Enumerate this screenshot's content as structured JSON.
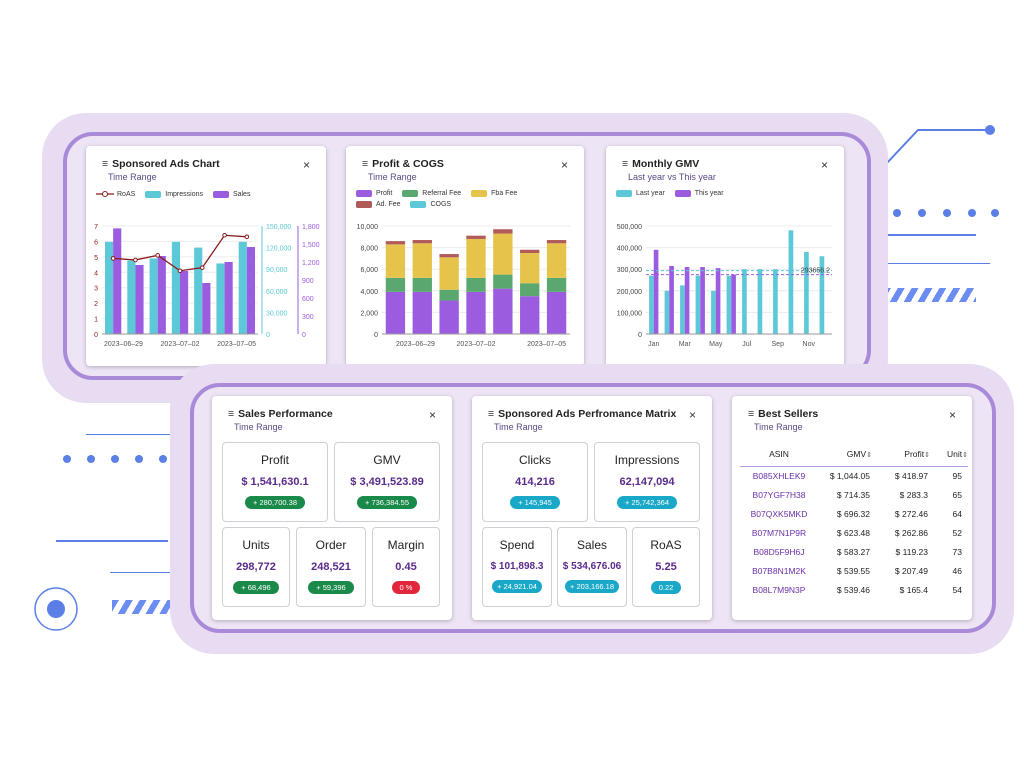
{
  "colors": {
    "teal": "#5cc8d8",
    "purple": "#9b5ce0",
    "roas_line": "#8b1a1a",
    "profit_bar": "#9b5ce0",
    "referral_bar": "#5aa870",
    "fba_bar": "#e6c34a",
    "ad_bar": "#b05a5a",
    "cogs_bar": "#5cc8d8",
    "badge_green": "#1a8a4a",
    "badge_red": "#e0283a",
    "badge_teal": "#1aa8c8"
  },
  "sponsored_ads_chart": {
    "title": "Sponsored Ads Chart",
    "subtitle": "Time Range",
    "close": "×",
    "legend": [
      "RoAS",
      "Impressions",
      "Sales"
    ],
    "left_ticks": [
      "7",
      "6",
      "5",
      "4",
      "3",
      "2",
      "1",
      "0"
    ],
    "mid_ticks": [
      "150,000",
      "120,000",
      "90,000",
      "60,000",
      "30,000",
      "0"
    ],
    "right_ticks": [
      "1,800",
      "1,500",
      "1,200",
      "900",
      "600",
      "300",
      "0"
    ],
    "x_labels": [
      "2023–06–29",
      "2023–07–02",
      "2023–07–05"
    ]
  },
  "profit_cogs": {
    "title": "Profit & COGS",
    "subtitle": "Time Range",
    "close": "×",
    "legend": [
      "Profit",
      "Referral Fee",
      "Fba Fee",
      "Ad. Fee",
      "COGS"
    ],
    "y_ticks": [
      "10,000",
      "8,000",
      "6,000",
      "4,000",
      "2,000",
      "0"
    ],
    "x_labels": [
      "2023–06–29",
      "2023–07–02",
      "2023–07–05"
    ]
  },
  "monthly_gmv": {
    "title": "Monthly GMV",
    "subtitle": "Last year vs This year",
    "close": "×",
    "legend": [
      "Last year",
      "This year"
    ],
    "y_ticks": [
      "500,000",
      "400,000",
      "300,000",
      "200,000",
      "100,000",
      "0"
    ],
    "x_labels": [
      "Jan",
      "Mar",
      "May",
      "Jul",
      "Sep",
      "Nov"
    ],
    "avg_label": "293656.2"
  },
  "chart_data": [
    {
      "type": "bar",
      "title": "Sponsored Ads Chart",
      "categories": [
        "2023-06-29",
        "",
        "",
        "2023-07-02",
        "",
        "",
        "2023-07-05"
      ],
      "series": [
        {
          "name": "Impressions",
          "axis": "mid",
          "values": [
            128000,
            102000,
            105000,
            128000,
            120000,
            98000,
            128000
          ]
        },
        {
          "name": "Sales",
          "axis": "right",
          "values": [
            1760,
            1150,
            1300,
            1050,
            850,
            1200,
            1450
          ]
        },
        {
          "name": "RoAS",
          "axis": "left",
          "type": "line",
          "values": [
            4.9,
            4.8,
            5.1,
            4.1,
            4.3,
            6.4,
            6.3
          ]
        }
      ],
      "ylim_left": [
        0,
        7
      ],
      "ylim_mid": [
        0,
        150000
      ],
      "ylim_right": [
        0,
        1800
      ]
    },
    {
      "type": "bar",
      "title": "Profit & COGS",
      "stacked": true,
      "categories": [
        "2023-06-29",
        "",
        "",
        "2023-07-02",
        "",
        "",
        "2023-07-05"
      ],
      "series": [
        {
          "name": "Profit",
          "values": [
            3900,
            3900,
            3100,
            3900,
            4200,
            3500,
            3900
          ]
        },
        {
          "name": "Referral Fee",
          "values": [
            1300,
            1300,
            1000,
            1300,
            1300,
            1200,
            1300
          ]
        },
        {
          "name": "Fba Fee",
          "values": [
            3100,
            3200,
            3000,
            3600,
            3800,
            2800,
            3200
          ]
        },
        {
          "name": "Ad. Fee",
          "values": [
            300,
            300,
            300,
            300,
            400,
            300,
            300
          ]
        },
        {
          "name": "COGS",
          "values": [
            0,
            0,
            0,
            0,
            0,
            0,
            0
          ]
        }
      ],
      "ylim": [
        0,
        10000
      ]
    },
    {
      "type": "bar",
      "title": "Monthly GMV",
      "categories": [
        "Jan",
        "Feb",
        "Mar",
        "Apr",
        "May",
        "Jun",
        "Jul",
        "Aug",
        "Sep",
        "Oct",
        "Nov",
        "Dec"
      ],
      "series": [
        {
          "name": "Last year",
          "values": [
            270000,
            200000,
            225000,
            270000,
            200000,
            270000,
            300000,
            300000,
            300000,
            480000,
            380000,
            360000
          ]
        },
        {
          "name": "This year",
          "values": [
            390000,
            315000,
            310000,
            310000,
            305000,
            275000,
            null,
            null,
            null,
            null,
            null,
            null
          ]
        }
      ],
      "average_line": 293656.2,
      "ylim": [
        0,
        500000
      ]
    }
  ],
  "sales_performance": {
    "title": "Sales Performance",
    "subtitle": "Time Range",
    "close": "×",
    "metrics": [
      {
        "label": "Profit",
        "value": "$ 1,541,630.1",
        "badge": "+ 280,700.38"
      },
      {
        "label": "GMV",
        "value": "$ 3,491,523.89",
        "badge": "+ 736,384.55"
      },
      {
        "label": "Units",
        "value": "298,772",
        "badge": "+ 68,496"
      },
      {
        "label": "Order",
        "value": "248,521",
        "badge": "+ 59,396"
      },
      {
        "label": "Margin",
        "value": "0.45",
        "badge": "0 %"
      }
    ]
  },
  "ads_matrix": {
    "title": "Sponsored Ads Perfromance Matrix",
    "subtitle": "Time Range",
    "close": "×",
    "metrics": [
      {
        "label": "Clicks",
        "value": "414,216",
        "badge": "+ 145,945"
      },
      {
        "label": "Impressions",
        "value": "62,147,094",
        "badge": "+ 25,742,364"
      },
      {
        "label": "Spend",
        "value": "$ 101,898.3",
        "badge": "+ 24,921.04"
      },
      {
        "label": "Sales",
        "value": "$ 534,676.06",
        "badge": "+ 203,166.18"
      },
      {
        "label": "RoAS",
        "value": "5.25",
        "badge": "0.22"
      }
    ]
  },
  "best_sellers": {
    "title": "Best Sellers",
    "subtitle": "Time Range",
    "close": "×",
    "columns": [
      "ASIN",
      "GMV",
      "Profit",
      "Unit"
    ],
    "sort_icon": "⇕",
    "rows": [
      {
        "asin": "B085XHLEK9",
        "gmv": "$ 1,044.05",
        "profit": "$ 418.97",
        "unit": "95"
      },
      {
        "asin": "B07YGF7H38",
        "gmv": "$ 714.35",
        "profit": "$ 283.3",
        "unit": "65"
      },
      {
        "asin": "B07QXK5MKD",
        "gmv": "$ 696.32",
        "profit": "$ 272.46",
        "unit": "64"
      },
      {
        "asin": "B07M7N1P9R",
        "gmv": "$ 623.48",
        "profit": "$ 262.86",
        "unit": "52"
      },
      {
        "asin": "B08D5F9H6J",
        "gmv": "$ 583.27",
        "profit": "$ 119.23",
        "unit": "73"
      },
      {
        "asin": "B07B8N1M2K",
        "gmv": "$ 539.55",
        "profit": "$ 207.49",
        "unit": "46"
      },
      {
        "asin": "B08L7M9N3P",
        "gmv": "$ 539.46",
        "profit": "$ 165.4",
        "unit": "54"
      }
    ]
  },
  "menu_icon": "≡"
}
